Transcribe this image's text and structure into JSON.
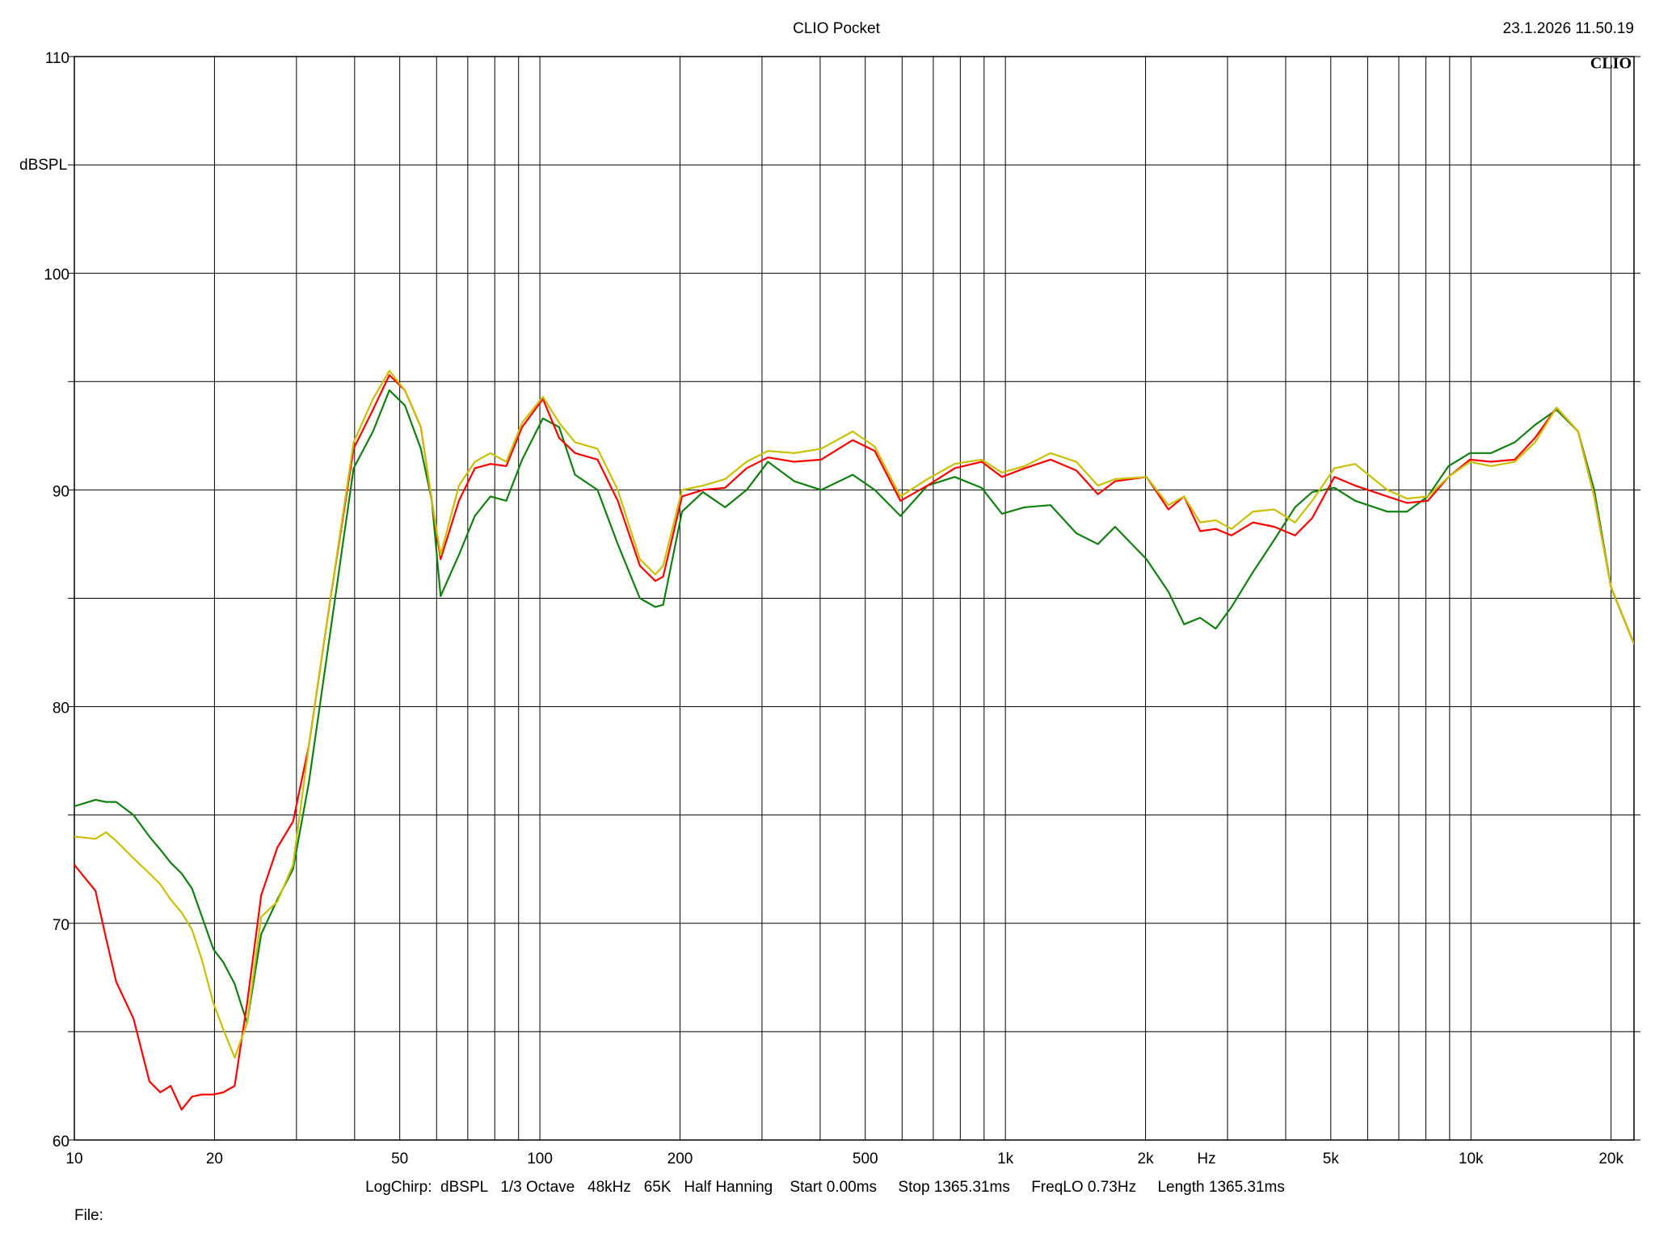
{
  "chart_data": {
    "type": "line",
    "title": "CLIO Pocket",
    "timestamp": "23.1.2026 11.50.19",
    "logo": "CLIO",
    "ylabel": "dBSPL",
    "xlabel": "Hz",
    "info": "LogChirp:  dBSPL   1/3 Octave   48kHz   65K   Half Hanning    Start 0.00ms     Stop 1365.31ms     FreqLO 0.73Hz     Length 1365.31ms",
    "file_label": "File:",
    "xscale": "log",
    "grid": true,
    "xlim": [
      10,
      22400
    ],
    "ylim": [
      60,
      110
    ],
    "xticks": [
      10,
      20,
      50,
      100,
      200,
      500,
      {
        "value": 1000,
        "label": "1k"
      },
      {
        "value": 2000,
        "label": "2k"
      },
      {
        "value": 5000,
        "label": "5k"
      },
      {
        "value": 10000,
        "label": "10k"
      },
      {
        "value": 20000,
        "label": "20k"
      }
    ],
    "x_minor_ticks": [
      30,
      40,
      60,
      70,
      80,
      90,
      300,
      400,
      600,
      700,
      800,
      900,
      3000,
      4000,
      6000,
      7000,
      8000,
      9000
    ],
    "yticks": [
      60,
      70,
      80,
      90,
      100,
      110
    ],
    "y_minor_ticks": [
      65,
      75,
      85,
      95,
      105
    ],
    "x": [
      10,
      11.1,
      11.7,
      12.3,
      13.4,
      14.5,
      15.3,
      16.1,
      17.0,
      17.9,
      18.8,
      19.9,
      20.9,
      22.1,
      23.5,
      25.2,
      27.3,
      29.5,
      31.9,
      35.5,
      39.8,
      43.8,
      47.5,
      51.3,
      55.5,
      58.6,
      61.2,
      67.0,
      72.5,
      78.3,
      84.7,
      91.6,
      101.5,
      110,
      119,
      133,
      147,
      164,
      177,
      184,
      202,
      224,
      250,
      278,
      309,
      352,
      402,
      470,
      524,
      595,
      680,
      778,
      889,
      983,
      1100,
      1250,
      1420,
      1580,
      1720,
      2010,
      2240,
      2420,
      2620,
      2830,
      3060,
      3400,
      3780,
      4190,
      4560,
      5090,
      5640,
      6610,
      7290,
      8080,
      8950,
      9950,
      11050,
      12420,
      13730,
      15270,
      16990,
      18400,
      20000,
      22400
    ],
    "series": [
      {
        "color": "#108010",
        "values": [
          75.4,
          75.7,
          75.6,
          75.6,
          75.0,
          74.0,
          73.4,
          72.8,
          72.3,
          71.6,
          70.3,
          68.8,
          68.2,
          67.2,
          65.4,
          69.5,
          71.1,
          72.5,
          76.5,
          83.5,
          91.0,
          92.7,
          94.6,
          93.9,
          91.9,
          89.5,
          85.1,
          87.0,
          88.8,
          89.7,
          89.5,
          91.4,
          93.3,
          92.9,
          90.7,
          90.0,
          87.5,
          85.0,
          84.6,
          84.7,
          89.0,
          89.9,
          89.2,
          90.0,
          91.3,
          90.4,
          90.0,
          90.7,
          90.0,
          88.8,
          90.2,
          90.6,
          90.1,
          88.9,
          89.2,
          89.3,
          88.0,
          87.5,
          88.3,
          86.8,
          85.3,
          83.8,
          84.1,
          83.6,
          84.6,
          86.2,
          87.7,
          89.2,
          89.9,
          90.1,
          89.5,
          89.0,
          89.0,
          89.7,
          91.1,
          91.7,
          91.7,
          92.2,
          93.0,
          93.7,
          92.7,
          90.0,
          85.5,
          82.9
        ]
      },
      {
        "color": "#ff0000",
        "values": [
          72.7,
          71.5,
          69.3,
          67.3,
          65.6,
          62.7,
          62.2,
          62.5,
          61.4,
          62.0,
          62.1,
          62.1,
          62.2,
          62.5,
          66.3,
          71.3,
          73.5,
          74.7,
          78.2,
          85.0,
          91.9,
          93.7,
          95.3,
          94.6,
          92.9,
          89.5,
          86.8,
          89.5,
          91.0,
          91.2,
          91.1,
          92.9,
          94.2,
          92.4,
          91.7,
          91.4,
          89.5,
          86.5,
          85.8,
          86.0,
          89.7,
          90.0,
          90.1,
          91.0,
          91.5,
          91.3,
          91.4,
          92.3,
          91.8,
          89.5,
          90.2,
          91.0,
          91.3,
          90.6,
          91.0,
          91.4,
          90.9,
          89.8,
          90.4,
          90.6,
          89.1,
          89.7,
          88.1,
          88.2,
          87.9,
          88.5,
          88.3,
          87.9,
          88.7,
          90.6,
          90.2,
          89.7,
          89.4,
          89.5,
          90.6,
          91.4,
          91.3,
          91.4,
          92.4,
          93.8,
          92.7,
          89.7,
          85.5,
          82.9
        ]
      },
      {
        "color": "#c8c000",
        "values": [
          74.0,
          73.9,
          74.2,
          73.8,
          73.0,
          72.3,
          71.8,
          71.1,
          70.5,
          69.7,
          68.3,
          66.3,
          65.1,
          63.8,
          65.4,
          70.3,
          71.0,
          72.7,
          78.2,
          85.0,
          92.2,
          94.2,
          95.5,
          94.6,
          92.9,
          89.5,
          87.0,
          90.2,
          91.3,
          91.7,
          91.3,
          93.1,
          94.3,
          93.1,
          92.2,
          91.9,
          90.0,
          86.8,
          86.1,
          86.5,
          90.0,
          90.2,
          90.5,
          91.3,
          91.8,
          91.7,
          91.9,
          92.7,
          92.0,
          89.7,
          90.5,
          91.2,
          91.4,
          90.8,
          91.1,
          91.7,
          91.3,
          90.2,
          90.5,
          90.6,
          89.3,
          89.7,
          88.5,
          88.6,
          88.2,
          89.0,
          89.1,
          88.5,
          89.5,
          91.0,
          91.2,
          90.0,
          89.6,
          89.7,
          90.6,
          91.3,
          91.1,
          91.3,
          92.2,
          93.8,
          92.7,
          89.7,
          85.5,
          82.9
        ]
      }
    ]
  }
}
